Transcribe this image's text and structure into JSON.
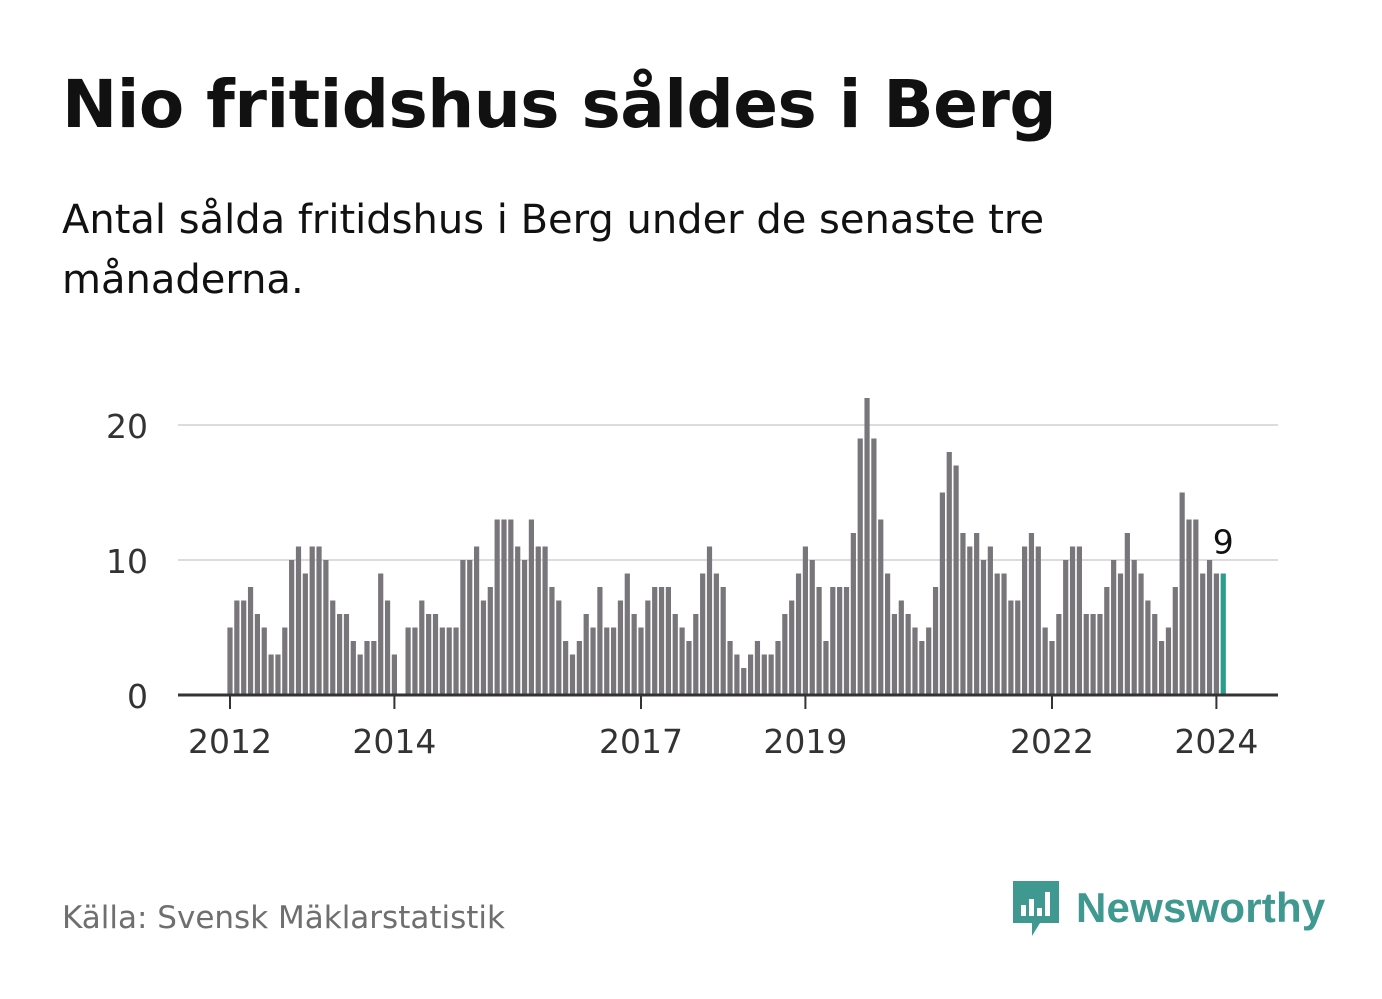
{
  "title": "Nio fritidshus såldes i Berg",
  "subtitle": "Antal sålda fritidshus i Berg under de senaste tre månaderna.",
  "source": "Källa: Svensk Mäklarstatistik",
  "brand": {
    "name": "Newsworthy",
    "icon": "newsworthy-logo-icon"
  },
  "colors": {
    "bar": "#78767b",
    "highlight": "#2a9d8f",
    "grid": "#dcdcdc",
    "axis": "#333333",
    "brand": "#3f9990"
  },
  "chart_data": {
    "type": "bar",
    "title": "Nio fritidshus såldes i Berg",
    "xlabel": "",
    "ylabel": "",
    "ylim": [
      0,
      22
    ],
    "yticks": [
      "0",
      "10",
      "20"
    ],
    "x_ticks": [
      {
        "label": "2012",
        "index": 0
      },
      {
        "label": "2014",
        "index": 24
      },
      {
        "label": "2017",
        "index": 60
      },
      {
        "label": "2019",
        "index": 84
      },
      {
        "label": "2022",
        "index": 120
      },
      {
        "label": "2024",
        "index": 144
      }
    ],
    "values": [
      5,
      7,
      7,
      8,
      6,
      5,
      3,
      3,
      5,
      10,
      11,
      9,
      11,
      11,
      10,
      7,
      6,
      6,
      4,
      3,
      4,
      4,
      9,
      7,
      3,
      0,
      5,
      5,
      7,
      6,
      6,
      5,
      5,
      5,
      10,
      10,
      11,
      7,
      8,
      13,
      13,
      13,
      11,
      10,
      13,
      11,
      11,
      8,
      7,
      4,
      3,
      4,
      6,
      5,
      8,
      5,
      5,
      7,
      9,
      6,
      5,
      7,
      8,
      8,
      8,
      6,
      5,
      4,
      6,
      9,
      11,
      9,
      8,
      4,
      3,
      2,
      3,
      4,
      3,
      3,
      4,
      6,
      7,
      9,
      11,
      10,
      8,
      4,
      8,
      8,
      8,
      12,
      19,
      22,
      19,
      13,
      9,
      6,
      7,
      6,
      5,
      4,
      5,
      8,
      15,
      18,
      17,
      12,
      11,
      12,
      10,
      11,
      9,
      9,
      7,
      7,
      11,
      12,
      11,
      5,
      4,
      6,
      10,
      11,
      11,
      6,
      6,
      6,
      8,
      10,
      9,
      12,
      10,
      9,
      7,
      6,
      4,
      5,
      8,
      15,
      13,
      13,
      9,
      10,
      9,
      9
    ],
    "highlight_last": true,
    "last_label": "9"
  }
}
